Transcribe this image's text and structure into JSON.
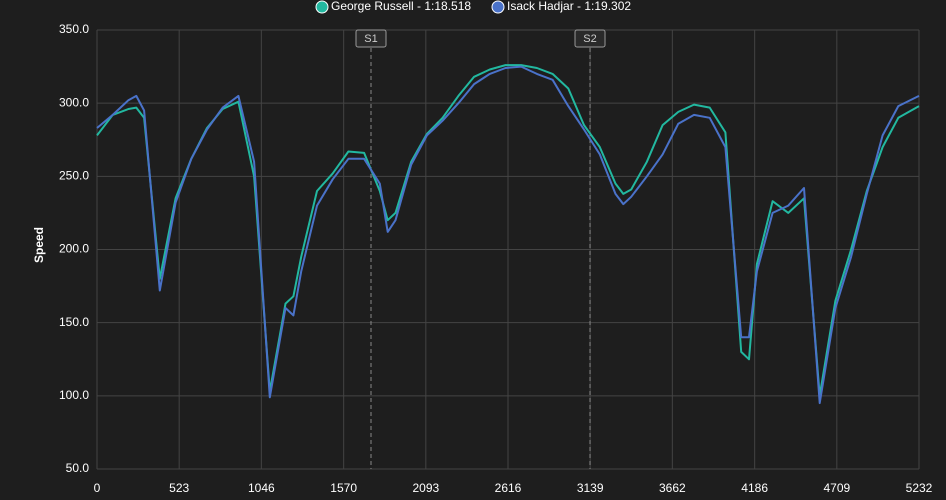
{
  "chart_data": {
    "type": "line",
    "y_label": "Speed",
    "x": [
      0,
      100,
      200,
      250,
      300,
      400,
      500,
      600,
      700,
      800,
      900,
      1000,
      1100,
      1200,
      1250,
      1300,
      1400,
      1500,
      1600,
      1700,
      1800,
      1850,
      1900,
      2000,
      2100,
      2200,
      2300,
      2400,
      2500,
      2600,
      2700,
      2800,
      2900,
      3000,
      3100,
      3200,
      3300,
      3350,
      3400,
      3500,
      3600,
      3700,
      3800,
      3900,
      4000,
      4100,
      4150,
      4200,
      4300,
      4400,
      4500,
      4600,
      4700,
      4800,
      4900,
      5000,
      5100,
      5232
    ],
    "series": [
      {
        "name": "George Russell - 1:18.518",
        "color": "#22b8a0",
        "values": [
          278,
          292,
          296,
          297,
          290,
          180,
          235,
          262,
          283,
          296,
          301,
          250,
          103,
          163,
          168,
          195,
          240,
          252,
          267,
          266,
          240,
          220,
          225,
          260,
          279,
          290,
          305,
          318,
          323,
          326,
          326,
          324,
          320,
          310,
          285,
          270,
          245,
          238,
          241,
          260,
          285,
          294,
          299,
          297,
          280,
          130,
          125,
          190,
          233,
          225,
          235,
          100,
          165,
          200,
          240,
          270,
          290,
          298
        ]
      },
      {
        "name": "Isack Hadjar - 1:19.302",
        "color": "#4a72c9",
        "values": [
          283,
          292,
          302,
          305,
          295,
          172,
          232,
          262,
          282,
          297,
          305,
          260,
          99,
          160,
          155,
          185,
          230,
          248,
          262,
          262,
          245,
          212,
          220,
          258,
          278,
          288,
          300,
          313,
          320,
          324,
          325,
          320,
          316,
          298,
          282,
          265,
          238,
          231,
          236,
          250,
          265,
          286,
          292,
          290,
          270,
          140,
          140,
          185,
          225,
          230,
          242,
          95,
          160,
          195,
          238,
          278,
          298,
          305
        ]
      }
    ],
    "annotations": [
      {
        "x": 1744,
        "label": "S1"
      },
      {
        "x": 3138,
        "label": "S2"
      }
    ],
    "xlim": [
      0,
      5232
    ],
    "xticks": [
      0,
      523,
      1046,
      1570,
      2093,
      2616,
      3139,
      3662,
      4186,
      4709,
      5232
    ],
    "ylim": [
      50,
      350
    ],
    "yticks": [
      {
        "value": 50,
        "label": "50.0"
      },
      {
        "value": 100,
        "label": "100.0"
      },
      {
        "value": 150,
        "label": "150.0"
      },
      {
        "value": 200,
        "label": "200.0"
      },
      {
        "value": 250,
        "label": "250.0"
      },
      {
        "value": 300,
        "label": "300.0"
      },
      {
        "value": 350,
        "label": "350.0"
      }
    ],
    "grid": true
  }
}
